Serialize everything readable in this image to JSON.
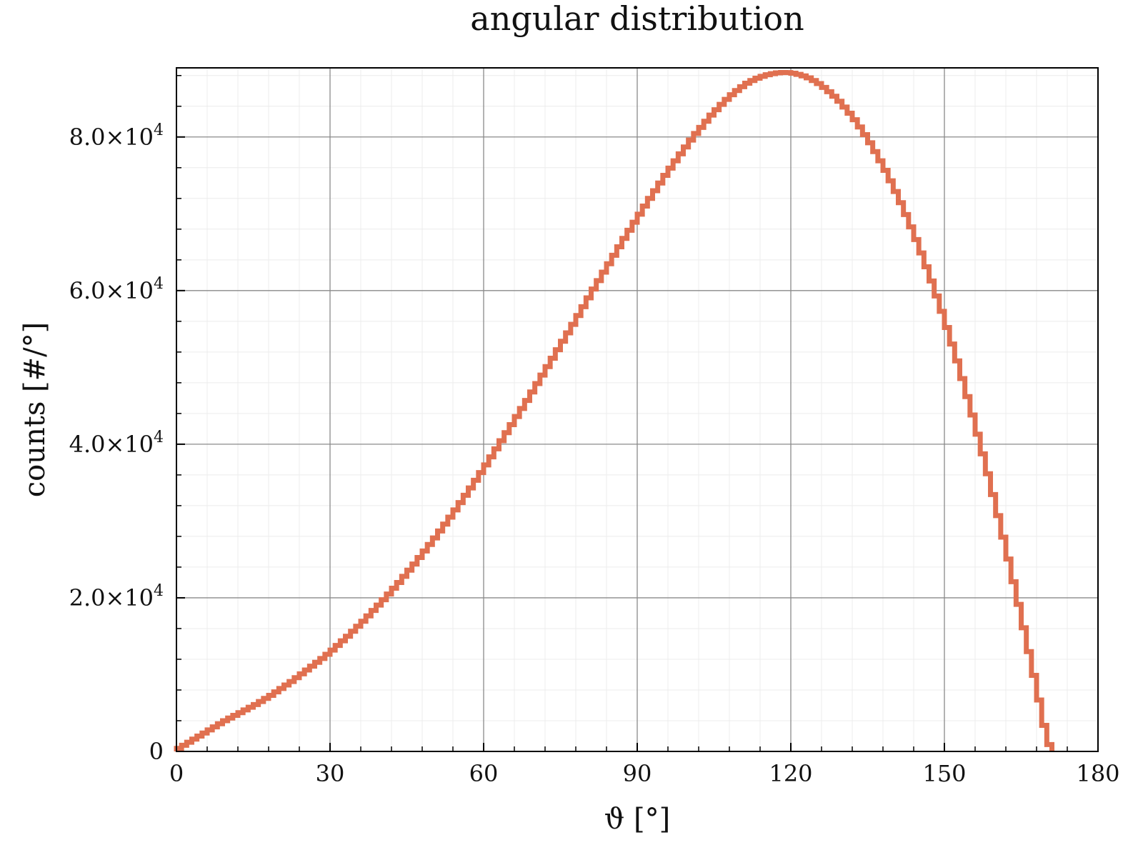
{
  "chart_data": {
    "type": "line",
    "style": "step",
    "title": "angular distribution",
    "xlabel": "ϑ [°]",
    "ylabel": "counts [#/°]",
    "xlim": [
      0,
      180
    ],
    "ylim": [
      0,
      89000
    ],
    "x_ticks": [
      0,
      30,
      60,
      90,
      120,
      150,
      180
    ],
    "x_tick_labels": [
      "0",
      "30",
      "60",
      "90",
      "120",
      "150",
      "180"
    ],
    "y_ticks": [
      0,
      20000,
      40000,
      60000,
      80000
    ],
    "y_tick_mantissa": [
      "0",
      "2.0×10",
      "4.0×10",
      "6.0×10",
      "8.0×10"
    ],
    "y_tick_exponent": [
      "",
      "4",
      "4",
      "4",
      "4"
    ],
    "grid": true,
    "minor_grid": true,
    "line_color": "#e07050",
    "series": [
      {
        "bin_width": 1,
        "x_start": 0,
        "values": [
          400,
          800,
          1200,
          1600,
          2000,
          2400,
          2800,
          3200,
          3600,
          4000,
          4350,
          4700,
          5050,
          5400,
          5750,
          6100,
          6500,
          6900,
          7300,
          7750,
          8200,
          8650,
          9100,
          9600,
          10100,
          10600,
          11100,
          11600,
          12100,
          12650,
          13200,
          13800,
          14400,
          15000,
          15650,
          16300,
          16950,
          17650,
          18350,
          19050,
          19750,
          20500,
          21250,
          22000,
          22800,
          23600,
          24400,
          25250,
          26100,
          26950,
          27800,
          28700,
          29600,
          30500,
          31450,
          32400,
          33350,
          34300,
          35300,
          36300,
          37300,
          38350,
          39400,
          40450,
          41500,
          42550,
          43600,
          44650,
          45700,
          46800,
          47900,
          49000,
          50100,
          51200,
          52300,
          53400,
          54500,
          55600,
          56750,
          57900,
          59050,
          60200,
          61300,
          62400,
          63500,
          64600,
          65700,
          66800,
          67850,
          68900,
          69950,
          71000,
          72000,
          73000,
          74000,
          75000,
          75950,
          76900,
          77800,
          78700,
          79600,
          80450,
          81250,
          82050,
          82850,
          83550,
          84250,
          84900,
          85500,
          86050,
          86550,
          87000,
          87350,
          87650,
          87900,
          88100,
          88250,
          88350,
          88400,
          88380,
          88300,
          88150,
          87950,
          87700,
          87350,
          86950,
          86450,
          85900,
          85300,
          84650,
          83900,
          83100,
          82250,
          81300,
          80300,
          79250,
          78100,
          76900,
          75650,
          74300,
          72900,
          71450,
          69900,
          68300,
          66650,
          64900,
          63100,
          61250,
          59300,
          57300,
          55200,
          53050,
          50850,
          48550,
          46200,
          43800,
          41300,
          38750,
          36150,
          33450,
          30700,
          27900,
          25050,
          22100,
          19150,
          16100,
          13000,
          9900,
          6700,
          3400,
          900
        ]
      }
    ]
  }
}
